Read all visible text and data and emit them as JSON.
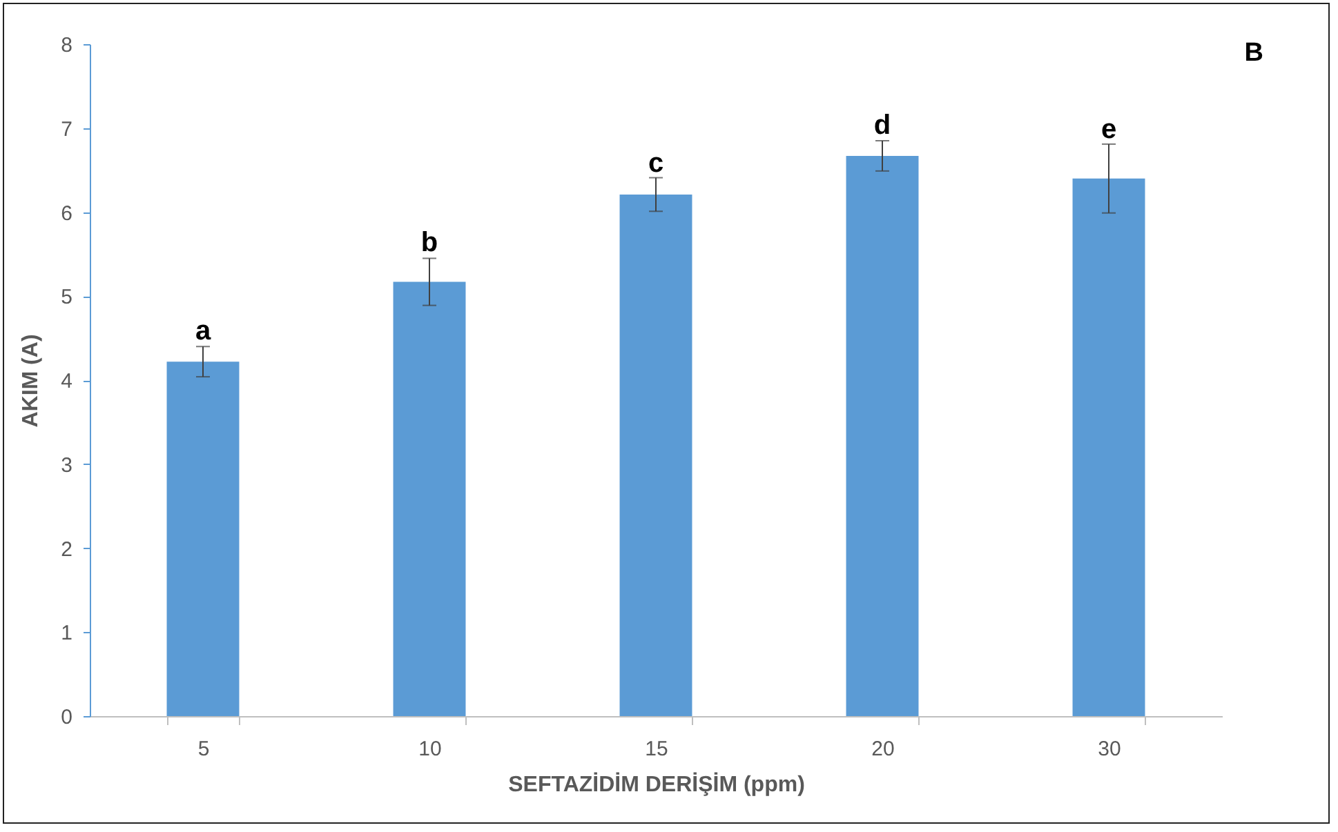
{
  "chart_data": {
    "type": "bar",
    "xlabel": "SEFTAZİDİM DERİŞİM (ppm)",
    "ylabel": "AKIM (A)",
    "categories": [
      "5",
      "10",
      "15",
      "20",
      "30"
    ],
    "values": [
      4.22,
      5.17,
      6.21,
      6.67,
      6.4
    ],
    "errors": [
      0.18,
      0.28,
      0.2,
      0.18,
      0.41
    ],
    "color": "#5b9bd5",
    "ylim": [
      0,
      8
    ],
    "yticks": [
      0,
      1,
      2,
      3,
      4,
      5,
      6,
      7,
      8
    ],
    "grid": false,
    "annotations": [
      "B",
      {
        "text": "a",
        "x": "5",
        "y": 4.45
      },
      {
        "text": "b",
        "x": "10",
        "y": 5.5
      },
      {
        "text": "c",
        "x": "15",
        "y": 6.45
      },
      {
        "text": "d",
        "x": "20",
        "y": 6.9
      },
      {
        "text": "e",
        "x": "30",
        "y": 6.85
      }
    ]
  }
}
